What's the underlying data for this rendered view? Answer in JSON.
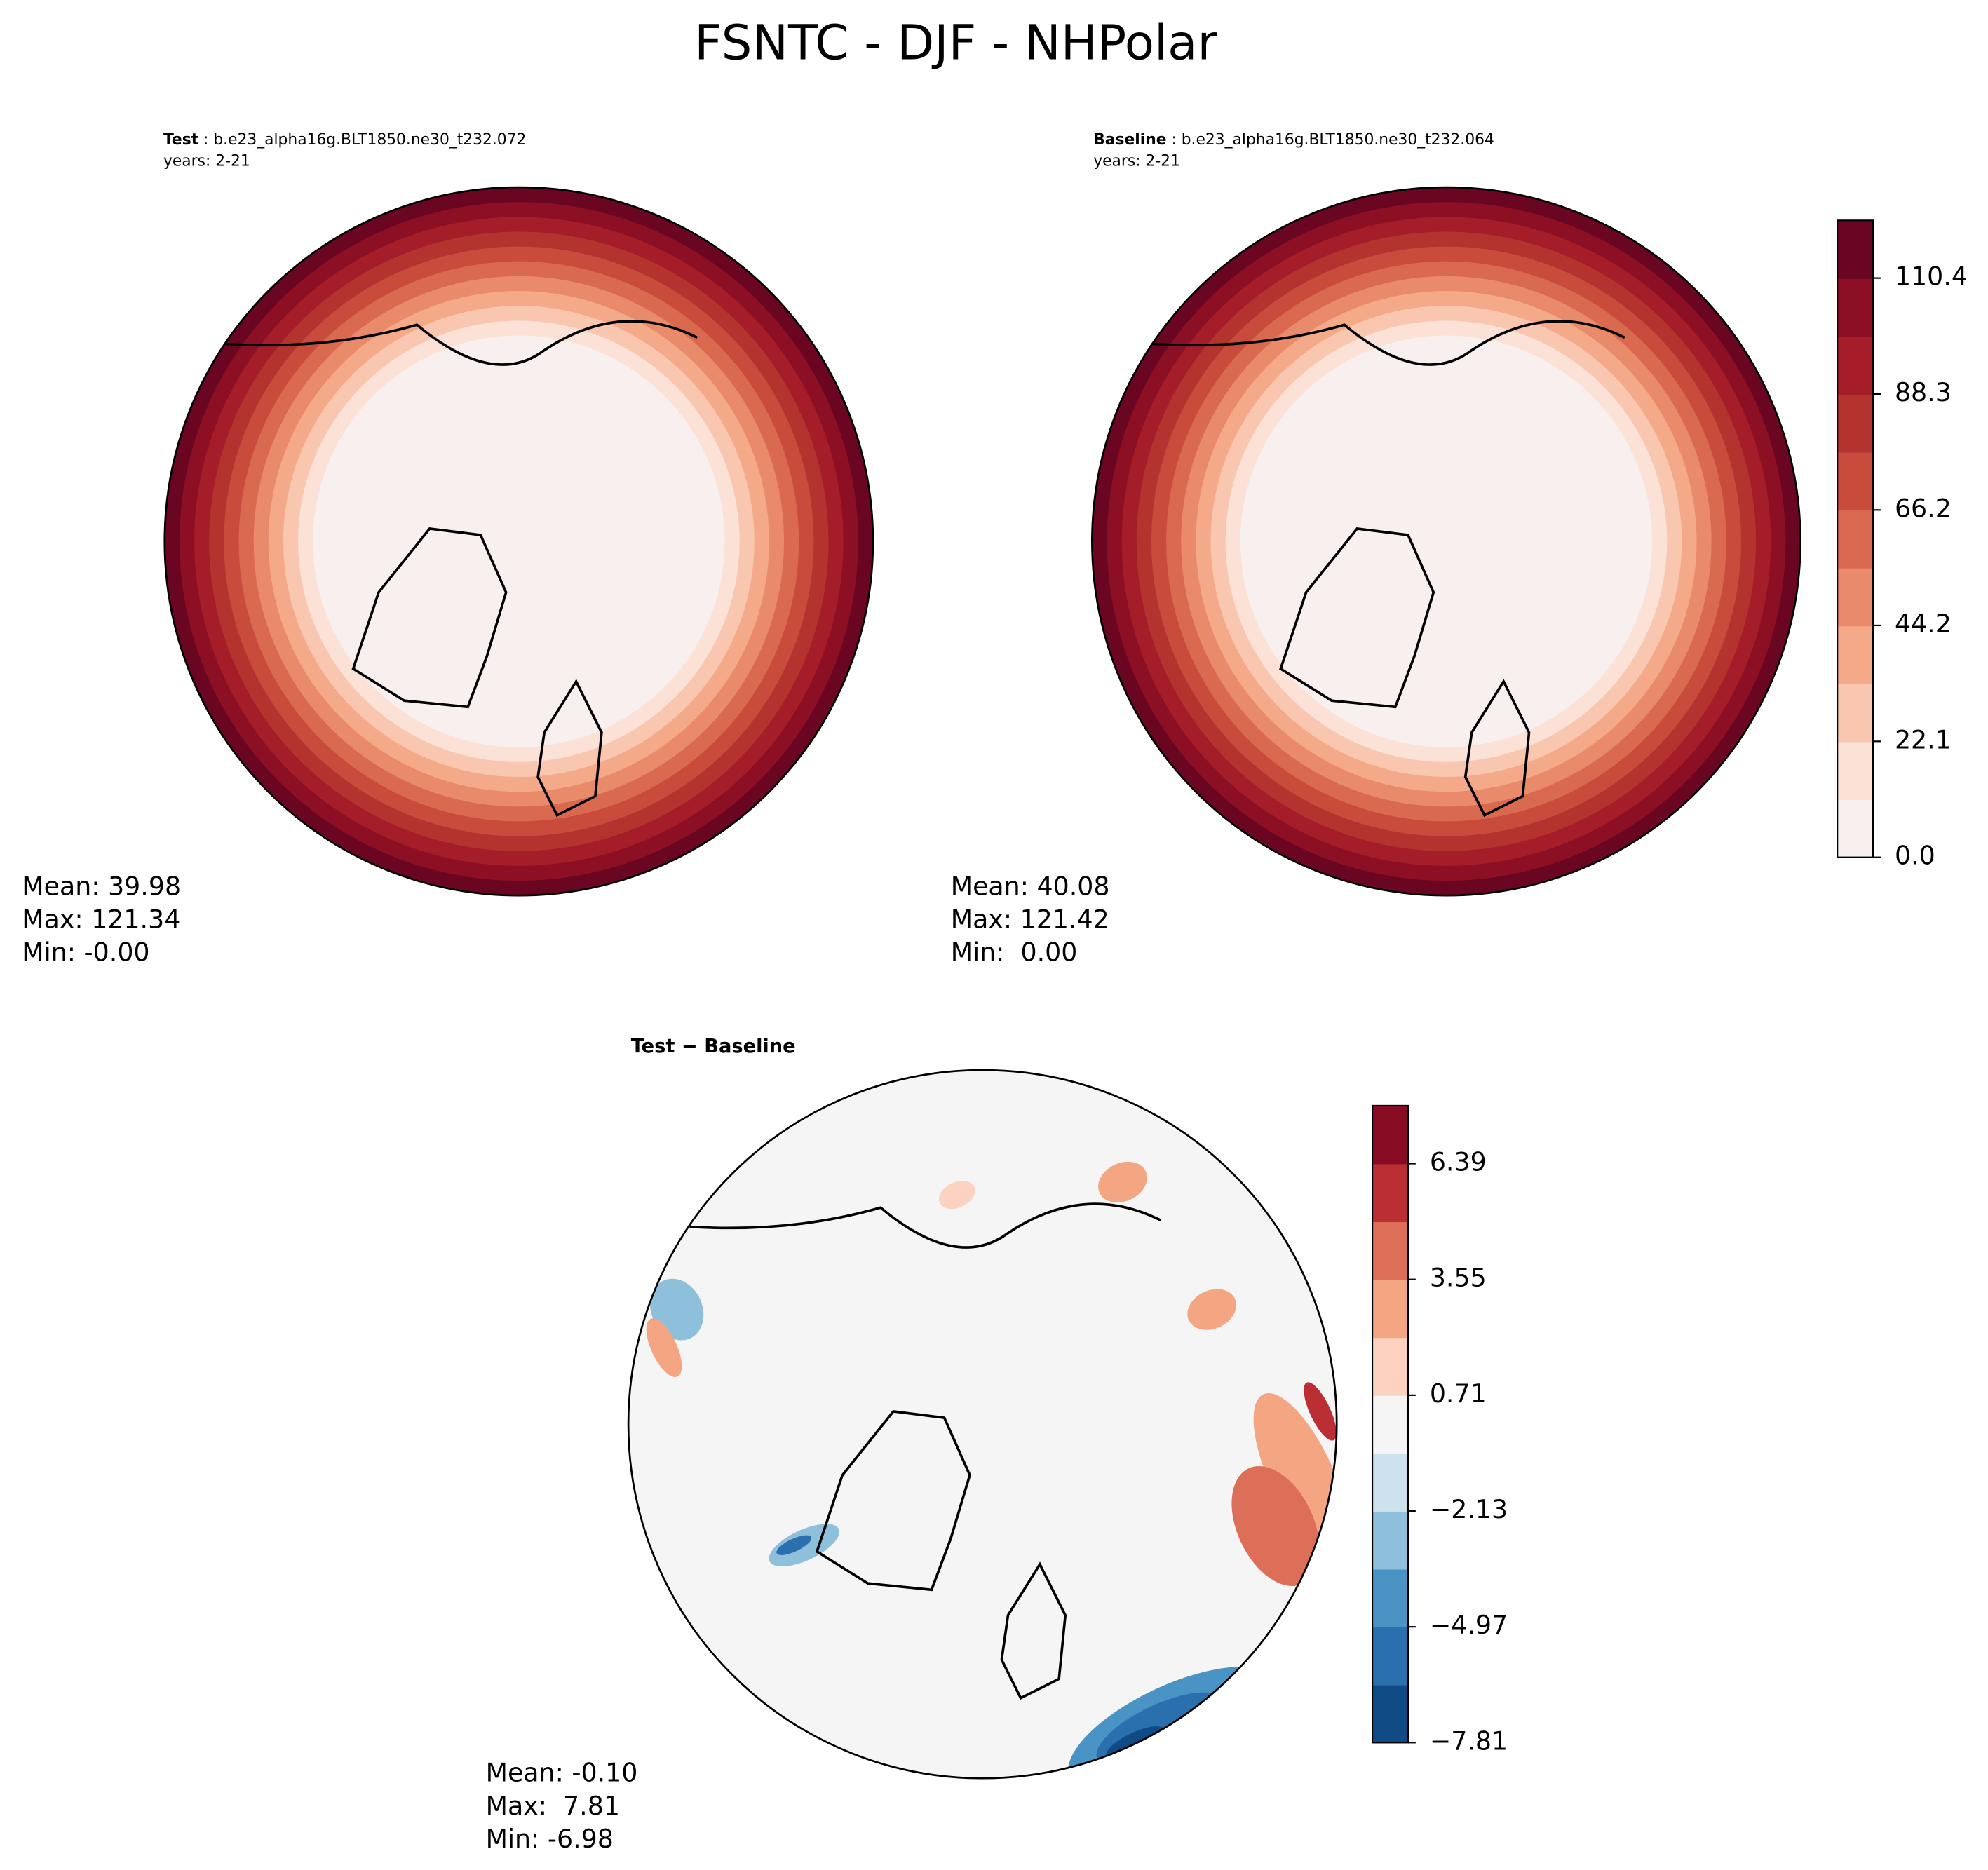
{
  "title": "FSNTC - DJF - NHPolar",
  "panels": [
    {
      "label_bold": "Test",
      "label": " : b.e23_alpha16g.BLT1850.ne30_t232.072",
      "years": "years: 2-21",
      "stats": [
        "Mean: 39.98",
        "Max: 121.34",
        "Min: -0.00"
      ]
    },
    {
      "label_bold": "Baseline",
      "label": " : b.e23_alpha16g.BLT1850.ne30_t232.064",
      "years": "years: 2-21",
      "stats": [
        "Mean: 40.08",
        "Max: 121.42",
        "Min:  0.00"
      ]
    },
    {
      "label_bold": "Test − Baseline",
      "stats": [
        "Mean: -0.10",
        "Max:  7.81",
        "Min: -6.98"
      ]
    }
  ],
  "colorbars": [
    {
      "lim": [
        0,
        121.4
      ],
      "ticks": [
        {
          "value": 0,
          "label": "0.0"
        },
        22.1,
        44.2,
        66.2,
        88.3,
        110.4
      ],
      "colors": [
        "#f7f0ee",
        "#fbe1d6",
        "#f9c7b0",
        "#f4a988",
        "#e98a6b",
        "#d9694f",
        "#c94b3c",
        "#b5332e",
        "#a51d28",
        "#8d0f23",
        "#6a0622"
      ]
    },
    {
      "lim": [
        -7.81,
        7.81
      ],
      "ticks": [
        {
          "value": -7.81,
          "label": "−7.81"
        },
        {
          "value": -4.97,
          "label": "−4.97"
        },
        {
          "value": -2.13,
          "label": "−2.13"
        },
        0.71,
        3.55,
        6.39
      ],
      "colors": [
        "#114b85",
        "#2a6fae",
        "#4a93c5",
        "#8ec0dc",
        "#cde2ee",
        "#f5f5f5",
        "#fbd3c0",
        "#f4a582",
        "#dd6e58",
        "#bb2e34",
        "#870b23"
      ]
    }
  ]
}
